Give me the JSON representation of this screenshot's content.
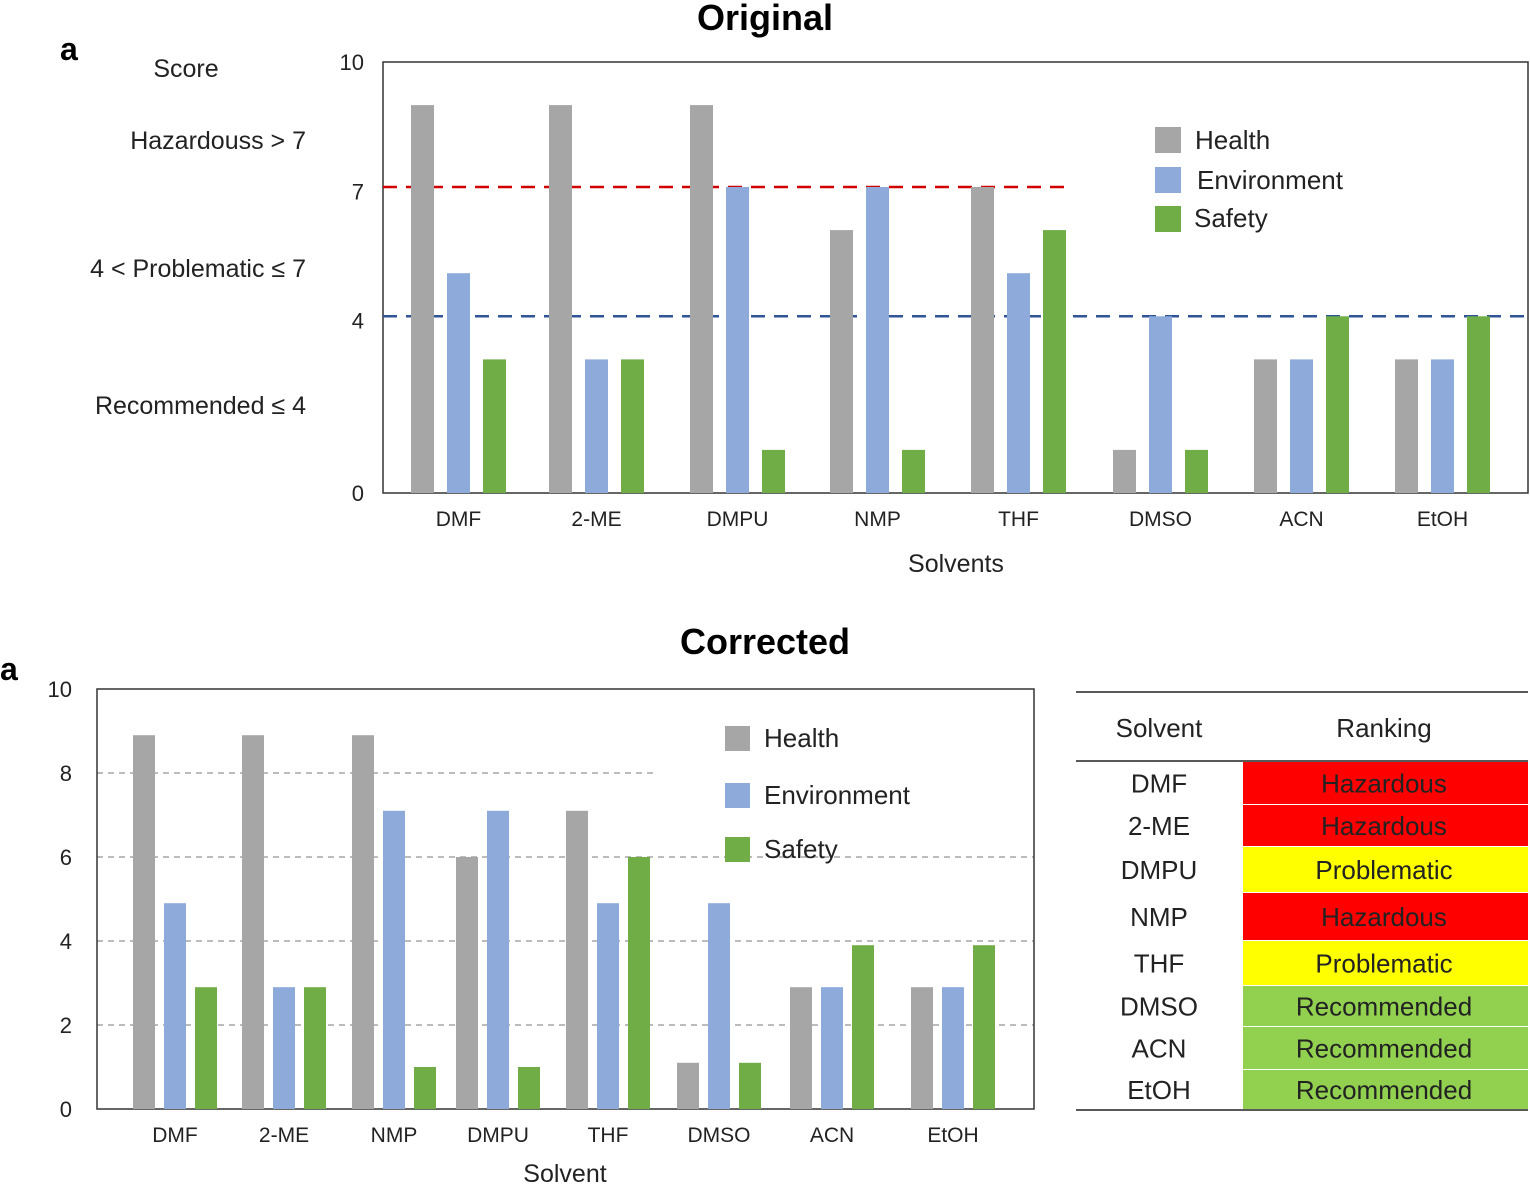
{
  "colors": {
    "health": "#a6a6a6",
    "environment": "#8eaadb",
    "safety": "#70ad47",
    "hazard_line": "#d00000",
    "recommended_line": "#2f5597",
    "grid": "#a6a6a6",
    "hazardous_fill": "#ff0000",
    "problematic_fill": "#ffff00",
    "recommended_fill": "#92d050"
  },
  "chart_data": [
    {
      "type": "bar",
      "title": "Original",
      "panel_label": "a",
      "xlabel": "Solvents",
      "ylabel": "Score",
      "ylim": [
        0,
        10
      ],
      "yticks": [
        0,
        4,
        7,
        10
      ],
      "categories": [
        "DMF",
        "2-ME",
        "DMPU",
        "NMP",
        "THF",
        "DMSO",
        "ACN",
        "EtOH"
      ],
      "series": [
        {
          "name": "Health",
          "color_key": "health",
          "values": [
            9,
            9,
            9,
            6.1,
            7.1,
            1,
            3.1,
            3.1
          ]
        },
        {
          "name": "Environment",
          "color_key": "environment",
          "values": [
            5.1,
            3.1,
            7.1,
            7.1,
            5.1,
            4.1,
            3.1,
            3.1
          ]
        },
        {
          "name": "Safety",
          "color_key": "safety",
          "values": [
            3.1,
            3.1,
            1,
            1,
            6.1,
            1,
            4.1,
            4.1
          ]
        }
      ],
      "threshold_lines": [
        {
          "value": 7.1,
          "color_key": "hazard_line"
        },
        {
          "value": 4.1,
          "color_key": "recommended_line"
        }
      ],
      "side_labels": [
        "Score",
        "Hazardouss > 7",
        "4 < Problematic ≤ 7",
        "Recommended ≤ 4"
      ],
      "legend": [
        "Health",
        "Environment",
        "Safety"
      ],
      "legend_position": "top-right"
    },
    {
      "type": "bar",
      "title": "Corrected",
      "panel_label": "a",
      "xlabel": "Solvent",
      "ylim": [
        0,
        10
      ],
      "yticks": [
        0,
        2,
        4,
        6,
        8,
        10
      ],
      "categories": [
        "DMF",
        "2-ME",
        "NMP",
        "DMPU",
        "THF",
        "DMSO",
        "ACN",
        "EtOH"
      ],
      "series": [
        {
          "name": "Health",
          "color_key": "health",
          "values": [
            8.9,
            8.9,
            8.9,
            6,
            7.1,
            1.1,
            2.9,
            2.9
          ]
        },
        {
          "name": "Environment",
          "color_key": "environment",
          "values": [
            4.9,
            2.9,
            7.1,
            7.1,
            4.9,
            4.9,
            2.9,
            2.9
          ]
        },
        {
          "name": "Safety",
          "color_key": "safety",
          "values": [
            2.9,
            2.9,
            1,
            1,
            6,
            1.1,
            3.9,
            3.9
          ]
        }
      ],
      "gridlines": [
        2,
        4,
        6,
        8
      ],
      "legend": [
        "Health",
        "Environment",
        "Safety"
      ],
      "legend_position": "top-right"
    }
  ],
  "ranking_table": {
    "headers": [
      "Solvent",
      "Ranking"
    ],
    "rows": [
      {
        "solvent": "DMF",
        "ranking": "Hazardous",
        "fill_key": "hazardous_fill"
      },
      {
        "solvent": "2-ME",
        "ranking": "Hazardous",
        "fill_key": "hazardous_fill"
      },
      {
        "solvent": "DMPU",
        "ranking": "Problematic",
        "fill_key": "problematic_fill"
      },
      {
        "solvent": "NMP",
        "ranking": "Hazardous",
        "fill_key": "hazardous_fill"
      },
      {
        "solvent": "THF",
        "ranking": "Problematic",
        "fill_key": "problematic_fill"
      },
      {
        "solvent": "DMSO",
        "ranking": "Recommended",
        "fill_key": "recommended_fill"
      },
      {
        "solvent": "ACN",
        "ranking": "Recommended",
        "fill_key": "recommended_fill"
      },
      {
        "solvent": "EtOH",
        "ranking": "Recommended",
        "fill_key": "recommended_fill"
      }
    ]
  }
}
